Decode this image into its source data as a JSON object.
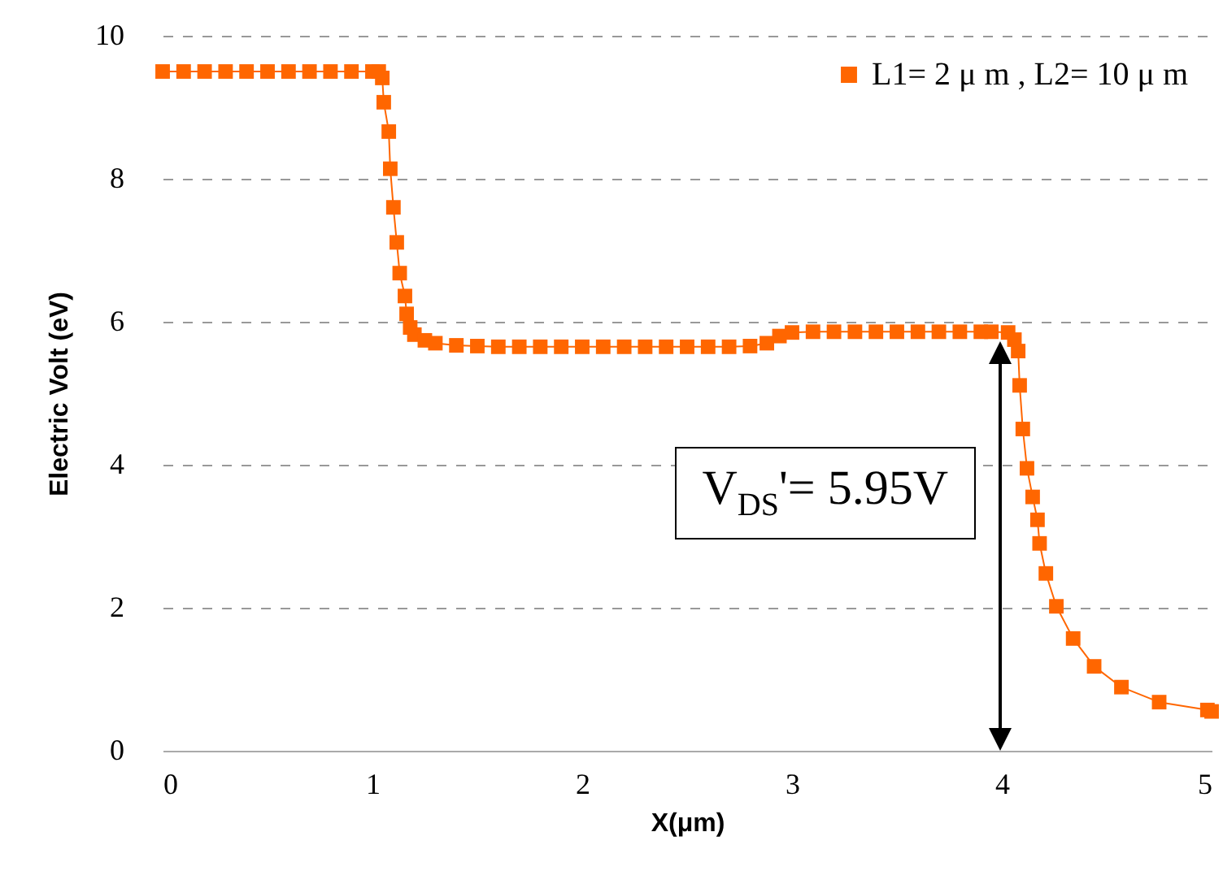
{
  "chart_data": {
    "type": "line",
    "xlabel": "X(μm)",
    "ylabel": "Electric Volt (eV)",
    "x": [
      0,
      0.1,
      0.2,
      0.3,
      0.4,
      0.5,
      0.6,
      0.7,
      0.8,
      0.9,
      1.0,
      1.03,
      1.047,
      1.054,
      1.078,
      1.085,
      1.1,
      1.116,
      1.13,
      1.155,
      1.163,
      1.18,
      1.2,
      1.25,
      1.3,
      1.4,
      1.5,
      1.6,
      1.7,
      1.8,
      1.9,
      2.0,
      2.1,
      2.2,
      2.3,
      2.4,
      2.5,
      2.6,
      2.7,
      2.8,
      2.88,
      2.94,
      3.0,
      3.1,
      3.2,
      3.3,
      3.4,
      3.5,
      3.6,
      3.7,
      3.8,
      3.9,
      3.95,
      4.03,
      4.06,
      4.078,
      4.085,
      4.1,
      4.12,
      4.147,
      4.17,
      4.18,
      4.21,
      4.26,
      4.34,
      4.44,
      4.57,
      4.75,
      4.98,
      5.0
    ],
    "series": [
      {
        "name": "L1= 2 μ m , L2= 10 μ m",
        "color": "#ff6600",
        "values": [
          9.5,
          9.5,
          9.5,
          9.5,
          9.5,
          9.5,
          9.5,
          9.5,
          9.5,
          9.5,
          9.5,
          9.5,
          9.41,
          9.07,
          8.66,
          8.14,
          7.6,
          7.11,
          6.68,
          6.36,
          6.11,
          5.92,
          5.82,
          5.74,
          5.7,
          5.67,
          5.66,
          5.65,
          5.65,
          5.65,
          5.65,
          5.65,
          5.65,
          5.65,
          5.65,
          5.65,
          5.65,
          5.65,
          5.65,
          5.66,
          5.7,
          5.8,
          5.85,
          5.86,
          5.86,
          5.86,
          5.86,
          5.86,
          5.86,
          5.86,
          5.86,
          5.86,
          5.86,
          5.85,
          5.75,
          5.59,
          5.11,
          4.5,
          3.95,
          3.55,
          3.23,
          2.9,
          2.48,
          2.02,
          1.57,
          1.18,
          0.89,
          0.68,
          0.57,
          0.55
        ]
      }
    ],
    "xlim": [
      0,
      5
    ],
    "xticks": [
      0,
      1,
      2,
      3,
      4,
      5
    ],
    "ylim": [
      0,
      10
    ],
    "yticks": [
      0,
      2,
      4,
      6,
      8,
      10
    ],
    "grid": "y",
    "legend": "top right",
    "marker": "square",
    "line_style": "solid",
    "annotations": [
      "V$_{DS}$'= 5.95V"
    ]
  }
}
